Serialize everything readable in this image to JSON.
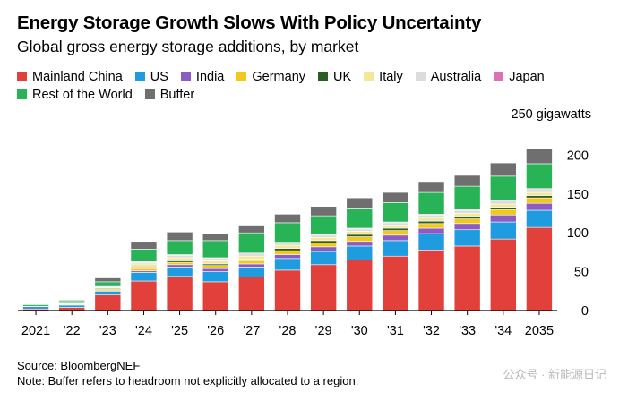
{
  "header": {
    "title": "Energy Storage Growth Slows With Policy Uncertainty",
    "subtitle": "Global gross energy storage additions, by market"
  },
  "footer": {
    "source": "Source: BloombergNEF",
    "note": "Note: Buffer refers to headroom not explicitly allocated to a region.",
    "credit": "BloombergNEF"
  },
  "watermark": "公众号 · 新能源日记",
  "colors": {
    "Mainland China": "#e2403a",
    "US": "#1f9be0",
    "India": "#8a5cc4",
    "Germany": "#f2c81c",
    "UK": "#2c5d25",
    "Italy": "#f4e79a",
    "Australia": "#dcdcdc",
    "Japan": "#dc72b5",
    "Rest of the World": "#27b356",
    "Buffer": "#6f6f6f"
  },
  "chart_data": {
    "type": "bar",
    "stacked": true,
    "title": "Energy Storage Growth Slows With Policy Uncertainty",
    "subtitle": "Global gross energy storage additions, by market",
    "ylabel": "250 gigawatts",
    "ylim": [
      0,
      250
    ],
    "yticks": [
      0,
      50,
      100,
      150,
      200
    ],
    "legend_rows": [
      [
        "Mainland China",
        "US",
        "India",
        "Germany",
        "UK",
        "Italy",
        "Australia",
        "Japan"
      ],
      [
        "Rest of the World",
        "Buffer"
      ]
    ],
    "categories": [
      "2021",
      "'22",
      "'23",
      "'24",
      "'25",
      "'26",
      "'27",
      "'28",
      "'29",
      "'30",
      "'31",
      "'32",
      "'33",
      "'34",
      "2035"
    ],
    "series": [
      {
        "name": "Mainland China",
        "values": [
          2,
          4,
          20,
          38,
          44,
          37,
          43,
          52,
          59,
          65,
          70,
          78,
          83,
          92,
          107
        ]
      },
      {
        "name": "US",
        "values": [
          3,
          3,
          5,
          11,
          12,
          13,
          13,
          15,
          17,
          18,
          20,
          21,
          21,
          22,
          22
        ]
      },
      {
        "name": "India",
        "values": [
          0,
          0,
          0.5,
          2,
          3,
          4,
          4,
          5,
          6,
          6,
          7,
          7,
          8,
          9,
          9
        ]
      },
      {
        "name": "Germany",
        "values": [
          0.5,
          1,
          2,
          3,
          3,
          4,
          4,
          5,
          5,
          6,
          6,
          6,
          6,
          7,
          7
        ]
      },
      {
        "name": "UK",
        "values": [
          0,
          0.5,
          1,
          2,
          2,
          2,
          2,
          3,
          3,
          3,
          3,
          3,
          3,
          3,
          3
        ]
      },
      {
        "name": "Italy",
        "values": [
          0,
          0.5,
          1,
          4,
          4,
          4,
          4,
          4,
          4,
          4,
          4,
          4,
          4,
          4,
          4
        ]
      },
      {
        "name": "Australia",
        "values": [
          0,
          0.5,
          1,
          2,
          3,
          3,
          3,
          3,
          3,
          3,
          3,
          4,
          4,
          4,
          4
        ]
      },
      {
        "name": "Japan",
        "values": [
          0,
          0,
          0.5,
          1,
          1,
          1,
          1,
          1,
          1,
          1,
          1,
          1,
          1,
          1,
          1
        ]
      },
      {
        "name": "Rest of the World",
        "values": [
          2,
          3,
          6,
          16,
          18,
          22,
          26,
          25,
          24,
          26,
          25,
          28,
          30,
          31,
          32
        ]
      },
      {
        "name": "Buffer",
        "values": [
          0,
          1,
          5,
          10,
          11,
          9,
          10,
          11,
          12,
          13,
          13,
          14,
          14,
          17,
          19
        ]
      }
    ]
  }
}
